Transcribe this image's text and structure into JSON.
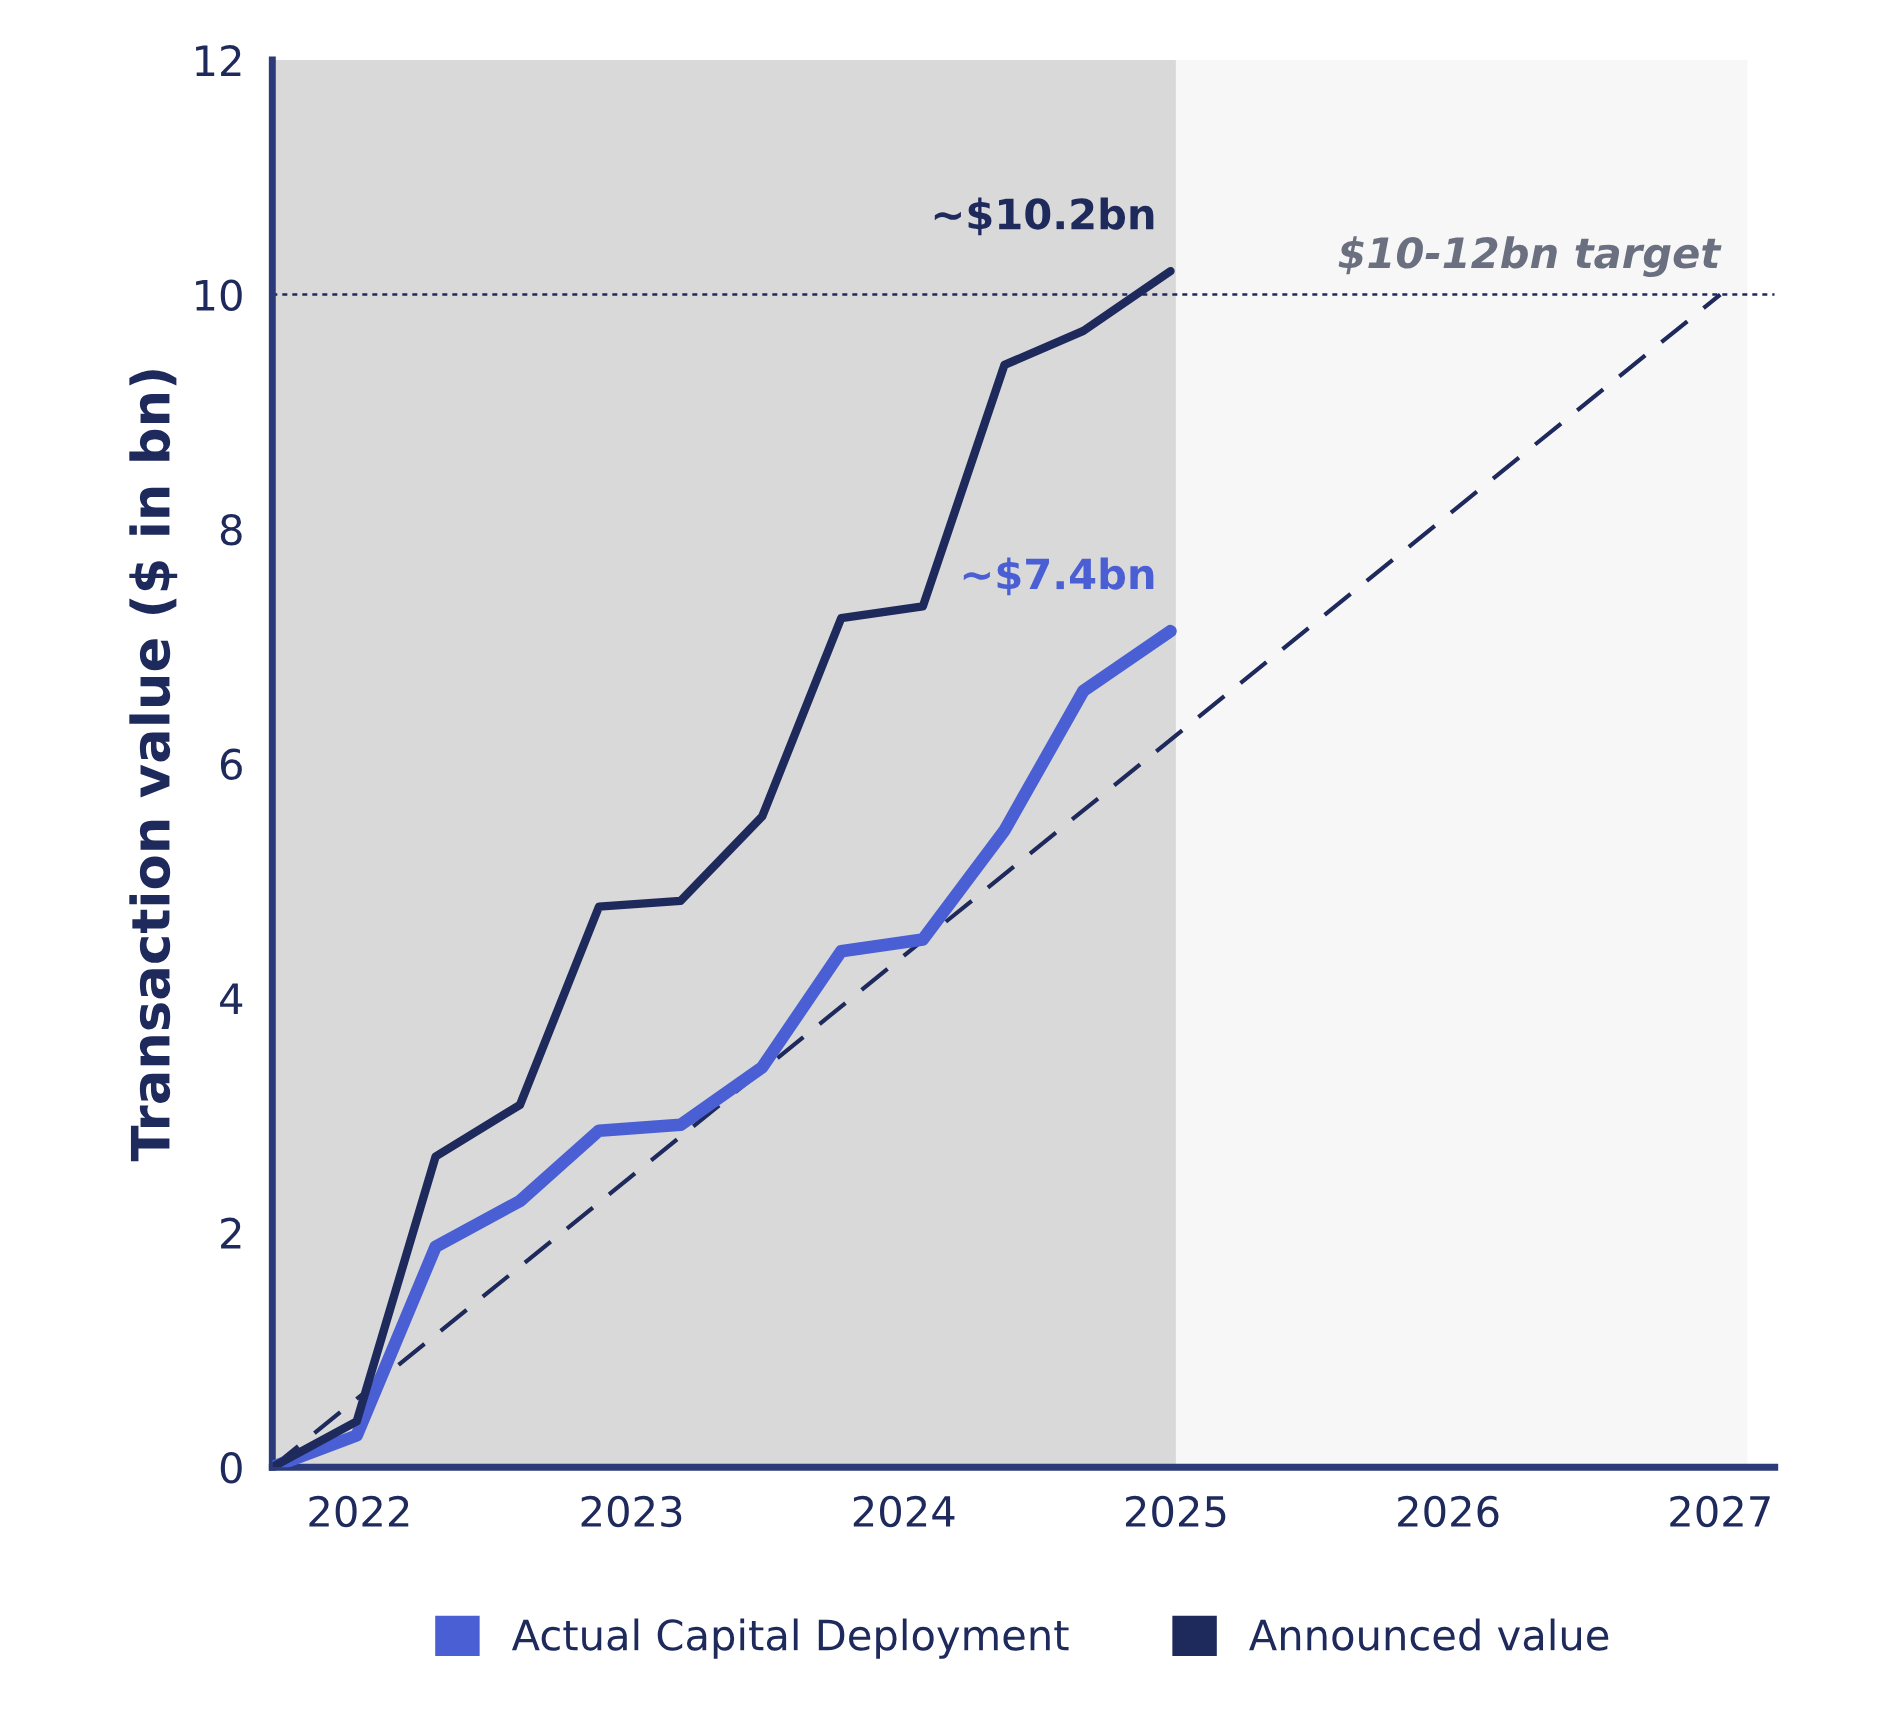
{
  "chart_data": {
    "type": "line",
    "ylabel": "Transaction value ($ in bn)",
    "xlim": [
      2021.68,
      2027.2
    ],
    "xticks": [
      2022,
      2023,
      2024,
      2025,
      2026,
      2027
    ],
    "ylim": [
      0,
      12
    ],
    "yticks": [
      0,
      2,
      4,
      6,
      8,
      10,
      12
    ],
    "x": [
      2021.68,
      2021.99,
      2022.28,
      2022.59,
      2022.88,
      2023.18,
      2023.48,
      2023.77,
      2024.07,
      2024.37,
      2024.66,
      2024.98
    ],
    "series": [
      {
        "name": "Actual Capital Deployment",
        "color": "#4a5fd4",
        "values": [
          0,
          0.27,
          1.88,
          2.27,
          2.87,
          2.92,
          3.41,
          4.4,
          4.5,
          5.43,
          6.62,
          7.13
        ]
      },
      {
        "name": "Announced value",
        "color": "#1f2a5c",
        "values": [
          0,
          0.39,
          2.65,
          3.09,
          4.78,
          4.83,
          5.55,
          7.24,
          7.34,
          9.4,
          9.69,
          10.2
        ]
      },
      {
        "color": "#1f2a5c",
        "x": [
          2021.68,
          2027
        ],
        "values": [
          0,
          10
        ],
        "line_style": "dashed"
      }
    ],
    "ref_lines": [
      {
        "axis": "y",
        "value": 10,
        "label": "$10-12bn target",
        "color": "#1f2a5c",
        "line_style": "dotted"
      }
    ],
    "bands": [
      {
        "axis": "x",
        "from": 2021.68,
        "to": 2025,
        "color": "#d9d9d9"
      },
      {
        "axis": "x",
        "from": 2025,
        "to": 2027.1,
        "color": "#f7f7f7"
      }
    ],
    "annotations": [
      {
        "text": "~$10.2bn",
        "x": 2024.98,
        "y": 10.2
      },
      {
        "text": "~$7.4bn",
        "x": 2024.98,
        "y": 7.13
      }
    ],
    "legend": "bottom",
    "grid": false
  }
}
